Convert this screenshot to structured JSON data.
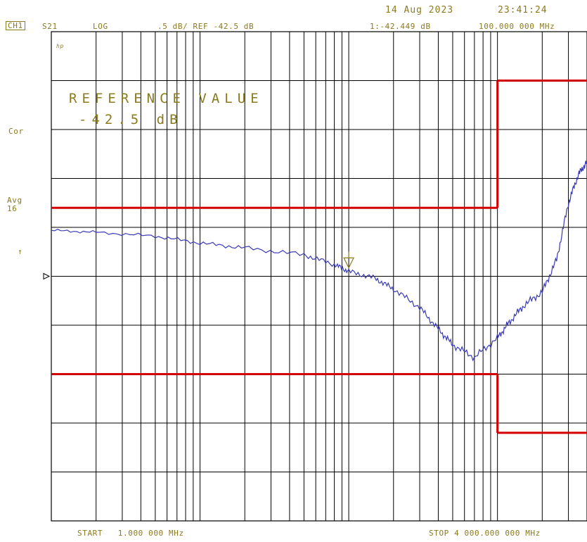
{
  "header": {
    "date": "14 Aug 2023",
    "time": "23:41:24",
    "channel": "CH1",
    "param": "S21",
    "format": "LOG",
    "scale": ".5 dB/ REF -42.5 dB",
    "marker_readout": "1:-42.449 dB",
    "marker_freq": "100.000 000 MHz"
  },
  "side": {
    "hp_logo": "hp",
    "cor": "Cor",
    "avg": "Avg",
    "avg_count": "16",
    "arrow": "↑"
  },
  "reference": {
    "title": "REFERENCE VALUE",
    "value": "-42.5 dB"
  },
  "footer": {
    "start": "START   1.000 000 MHz",
    "stop": "STOP 4 000.000 000 MHz"
  },
  "colors": {
    "annotation": "#8a7a1e",
    "trace": "#3a3ab8",
    "limit": "#d40000",
    "grid": "#000000"
  },
  "chart_data": {
    "type": "line",
    "x_scale": "log",
    "x_unit": "MHz",
    "xlim": [
      1,
      4000
    ],
    "ylim": [
      -45,
      -40
    ],
    "y_divisions": 10,
    "reference_level_db": -42.5,
    "grid": true,
    "series": [
      {
        "x": [
          1,
          2,
          5,
          10,
          20,
          50,
          80,
          100,
          150,
          200,
          300,
          400,
          500,
          700,
          1000,
          1200,
          1500,
          2000,
          2500,
          3000,
          3500,
          4000
        ],
        "y": [
          -42.03,
          -42.05,
          -42.09,
          -42.16,
          -42.21,
          -42.28,
          -42.38,
          -42.45,
          -42.52,
          -42.63,
          -42.82,
          -43.04,
          -43.2,
          -43.33,
          -43.13,
          -42.97,
          -42.8,
          -42.66,
          -42.33,
          -41.75,
          -41.46,
          -41.33
        ]
      }
    ],
    "limit_lines": [
      {
        "x": [
          1,
          1000
        ],
        "upper": -41.8,
        "lower": -43.5
      },
      {
        "x": [
          1000,
          4000
        ],
        "upper": -40.5,
        "lower": -44.1
      }
    ],
    "marker": {
      "id": 1,
      "x": 100,
      "y": -42.449
    }
  }
}
